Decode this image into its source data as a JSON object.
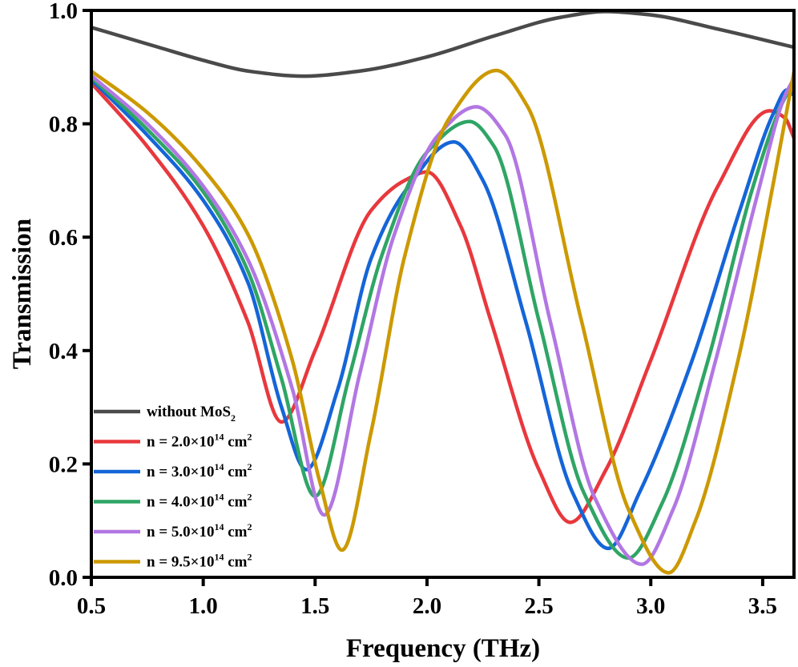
{
  "chart_data": {
    "type": "line",
    "title": "",
    "xlabel": "Frequency (THz)",
    "ylabel": "Transmission",
    "xlim": [
      0.5,
      3.64
    ],
    "ylim": [
      0.0,
      1.0
    ],
    "xticks": [
      0.5,
      1.0,
      1.5,
      2.0,
      2.5,
      3.0,
      3.5
    ],
    "xtick_labels": [
      "0.5",
      "1.0",
      "1.5",
      "2.0",
      "2.5",
      "3.0",
      "3.5"
    ],
    "yticks": [
      0.0,
      0.2,
      0.4,
      0.6,
      0.8,
      1.0
    ],
    "ytick_labels": [
      "0.0",
      "0.2",
      "0.4",
      "0.6",
      "0.8",
      "1.0"
    ],
    "grid": false,
    "legend_position": "bottom-left",
    "series": [
      {
        "name": "without MoS2",
        "label_main": "without MoS",
        "label_sub": "2",
        "label_sup": "",
        "label_tail": "",
        "color": "#4a4a4a",
        "x": [
          0.5,
          0.8,
          1.0,
          1.2,
          1.45,
          1.7,
          2.0,
          2.3,
          2.6,
          2.8,
          3.0,
          3.3,
          3.64
        ],
        "y": [
          0.97,
          0.935,
          0.912,
          0.893,
          0.884,
          0.893,
          0.918,
          0.955,
          0.988,
          0.998,
          0.992,
          0.967,
          0.935
        ]
      },
      {
        "name": "n = 2.0×10^14 cm^2",
        "label_main": "n = 2.0×10",
        "label_sub": "",
        "label_sup": "14",
        "label_tail": " cm",
        "label_sup2": "2",
        "color": "#e8383d",
        "x": [
          0.5,
          0.75,
          1.0,
          1.2,
          1.35,
          1.5,
          1.75,
          1.9,
          2.0,
          2.15,
          2.285,
          2.5,
          2.64,
          2.8,
          3.0,
          3.3,
          3.53,
          3.6,
          3.64
        ],
        "y": [
          0.872,
          0.76,
          0.62,
          0.45,
          0.274,
          0.4,
          0.647,
          0.7,
          0.715,
          0.62,
          0.453,
          0.19,
          0.097,
          0.19,
          0.383,
          0.69,
          0.823,
          0.81,
          0.775
        ]
      },
      {
        "name": "n = 3.0×10^14 cm^2",
        "label_main": "n = 3.0×10",
        "label_sub": "",
        "label_sup": "14",
        "label_tail": " cm",
        "label_sup2": "2",
        "color": "#1565d8",
        "x": [
          0.5,
          0.75,
          1.0,
          1.2,
          1.35,
          1.46,
          1.6,
          1.75,
          1.9,
          2.12,
          2.25,
          2.44,
          2.65,
          2.81,
          2.95,
          3.185,
          3.4,
          3.55,
          3.61,
          3.64
        ],
        "y": [
          0.878,
          0.78,
          0.665,
          0.52,
          0.3,
          0.19,
          0.33,
          0.562,
          0.68,
          0.768,
          0.7,
          0.453,
          0.15,
          0.051,
          0.15,
          0.383,
          0.65,
          0.82,
          0.86,
          0.85
        ]
      },
      {
        "name": "n = 4.0×10^14 cm^2",
        "label_main": "n = 4.0×10",
        "label_sub": "",
        "label_sup": "14",
        "label_tail": " cm",
        "label_sup2": "2",
        "color": "#2fa565",
        "x": [
          0.5,
          0.75,
          1.0,
          1.2,
          1.35,
          1.5,
          1.65,
          1.8,
          2.0,
          2.19,
          2.3,
          2.5,
          2.7,
          2.9,
          3.05,
          3.256,
          3.45,
          3.58,
          3.64
        ],
        "y": [
          0.882,
          0.79,
          0.68,
          0.54,
          0.35,
          0.143,
          0.35,
          0.57,
          0.75,
          0.804,
          0.76,
          0.453,
          0.15,
          0.034,
          0.13,
          0.383,
          0.68,
          0.83,
          0.875
        ]
      },
      {
        "name": "n = 5.0×10^14 cm^2",
        "label_main": "n = 5.0×10",
        "label_sub": "",
        "label_sup": "14",
        "label_tail": " cm",
        "label_sup2": "2",
        "color": "#b277e3",
        "x": [
          0.5,
          0.75,
          1.0,
          1.2,
          1.4,
          1.54,
          1.7,
          1.85,
          2.05,
          2.22,
          2.35,
          2.55,
          2.75,
          2.96,
          3.1,
          3.29,
          3.48,
          3.6,
          3.64
        ],
        "y": [
          0.885,
          0.8,
          0.69,
          0.56,
          0.33,
          0.11,
          0.36,
          0.6,
          0.78,
          0.83,
          0.78,
          0.453,
          0.14,
          0.023,
          0.12,
          0.383,
          0.68,
          0.85,
          0.88
        ]
      },
      {
        "name": "n = 9.5×10^14 cm^2",
        "label_main": "n = 9.5×10",
        "label_sub": "",
        "label_sup": "14",
        "label_tail": " cm",
        "label_sup2": "2",
        "color": "#cc9900",
        "x": [
          0.5,
          0.75,
          1.0,
          1.2,
          1.4,
          1.52,
          1.62,
          1.75,
          1.9,
          2.1,
          2.31,
          2.45,
          2.69,
          2.9,
          3.08,
          3.2,
          3.39,
          3.55,
          3.64
        ],
        "y": [
          0.893,
          0.82,
          0.72,
          0.605,
          0.38,
          0.17,
          0.048,
          0.256,
          0.566,
          0.81,
          0.894,
          0.83,
          0.453,
          0.12,
          0.008,
          0.1,
          0.383,
          0.7,
          0.892
        ]
      }
    ]
  }
}
